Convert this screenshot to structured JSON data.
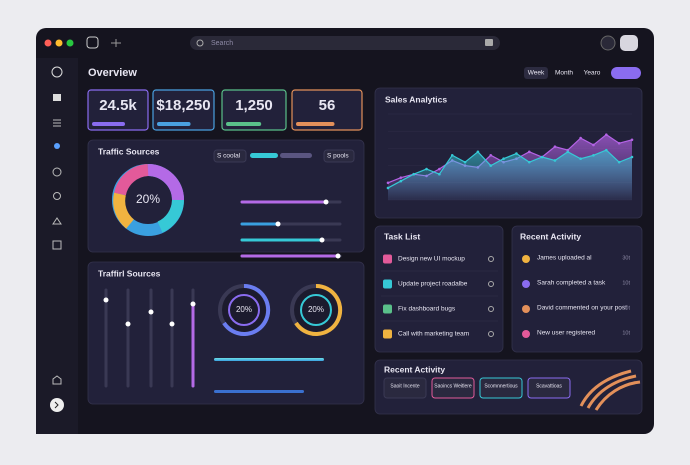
{
  "search": {
    "placeholder": "Search"
  },
  "header": {
    "title": "Overview",
    "tabs": [
      "Week",
      "Month",
      "Yearo"
    ]
  },
  "stats": [
    "24.5k",
    "$18,250",
    "1,250",
    "56"
  ],
  "traffic": {
    "title": "Traffic Sources",
    "center": "20%",
    "chips": [
      "S coolal",
      "S pools"
    ]
  },
  "traffic2": {
    "title": "Traffirl Sources",
    "gauges": [
      "20%",
      "20%"
    ]
  },
  "sales": {
    "title": "Sales Analytics",
    "ylim": [
      0,
      100
    ],
    "series": [
      {
        "color": "#b463e6",
        "values": [
          20,
          26,
          30,
          28,
          36,
          46,
          40,
          38,
          52,
          44,
          48,
          56,
          50,
          62,
          58,
          72,
          64,
          76,
          66,
          70
        ]
      },
      {
        "color": "#36c9d6",
        "values": [
          14,
          22,
          30,
          36,
          30,
          52,
          44,
          56,
          40,
          48,
          54,
          44,
          50,
          46,
          56,
          48,
          52,
          58,
          44,
          50
        ]
      }
    ]
  },
  "tasks": {
    "title": "Task List",
    "items": [
      "Design new UI mockup",
      "Update project roadalbe",
      "Fix dashboard bugs",
      "Call with marketing team"
    ]
  },
  "activity": {
    "title": "Recent Activity",
    "items": [
      {
        "text": "James uploaded al",
        "time": "30t"
      },
      {
        "text": "Sarah completed a task",
        "time": "10t"
      },
      {
        "text": "David commented on your post",
        "time": "10t"
      },
      {
        "text": "New user registered",
        "time": "10t"
      }
    ]
  },
  "activity2": {
    "title": "Recent Activity",
    "chips": [
      "Saoit Incente",
      "Saoincs Weitlere",
      "Scomnnertious",
      "Scavattioas"
    ]
  }
}
